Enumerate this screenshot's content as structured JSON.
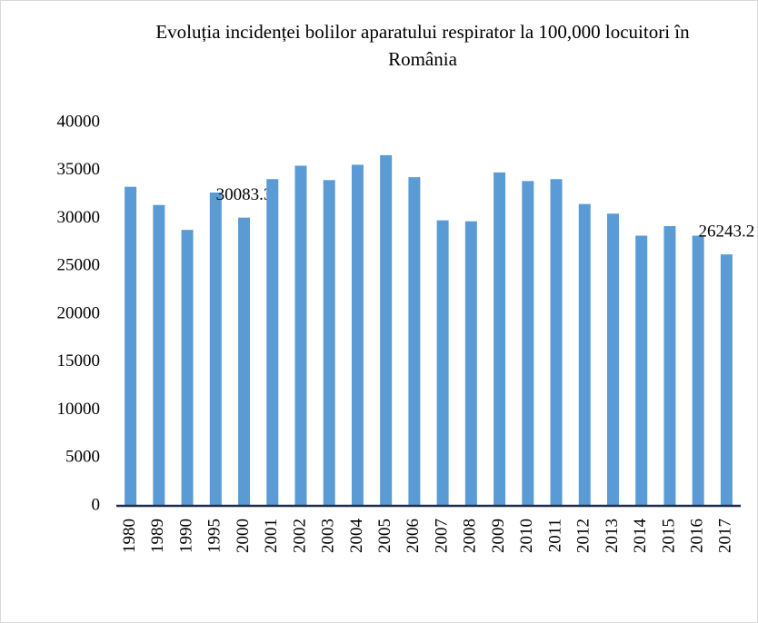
{
  "chart_data": {
    "type": "bar",
    "title": "Evoluția incidenței bolilor aparatului respirator la 100,000 locuitori în România",
    "categories": [
      "1980",
      "1989",
      "1990",
      "1995",
      "2000",
      "2001",
      "2002",
      "2003",
      "2004",
      "2005",
      "2006",
      "2007",
      "2008",
      "2009",
      "2010",
      "2011",
      "2012",
      "2013",
      "2014",
      "2015",
      "2016",
      "2017"
    ],
    "values": [
      33300,
      31400,
      28800,
      32700,
      30083.3,
      34100,
      35500,
      34000,
      35600,
      36600,
      34300,
      29800,
      29700,
      34800,
      33900,
      34100,
      31500,
      30500,
      28200,
      29200,
      28200,
      26243.2
    ],
    "value_labels": [
      null,
      null,
      null,
      null,
      "30083.3",
      null,
      null,
      null,
      null,
      null,
      null,
      null,
      null,
      null,
      null,
      null,
      null,
      null,
      null,
      null,
      null,
      "26243.2"
    ],
    "color": "#5b9bd5",
    "ylim": [
      0,
      40000
    ],
    "yticks": [
      0,
      5000,
      10000,
      15000,
      20000,
      25000,
      30000,
      35000,
      40000
    ],
    "grid": false
  }
}
